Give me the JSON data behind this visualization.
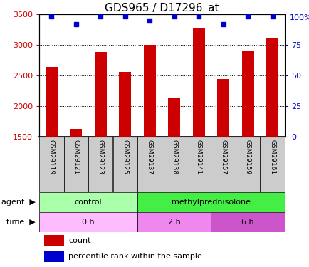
{
  "title": "GDS965 / D17296_at",
  "samples": [
    "GSM29119",
    "GSM29121",
    "GSM29123",
    "GSM29125",
    "GSM29137",
    "GSM29138",
    "GSM29141",
    "GSM29157",
    "GSM29159",
    "GSM29161"
  ],
  "counts": [
    2640,
    1630,
    2880,
    2560,
    3000,
    2140,
    3280,
    2440,
    2900,
    3110
  ],
  "percentile_ranks": [
    98,
    92,
    98,
    98,
    95,
    98,
    98,
    92,
    98,
    98
  ],
  "ylim_left": [
    1500,
    3500
  ],
  "ylim_right": [
    0,
    100
  ],
  "yticks_left": [
    1500,
    2000,
    2500,
    3000,
    3500
  ],
  "yticks_right": [
    0,
    25,
    50,
    75,
    100
  ],
  "bar_color": "#cc0000",
  "dot_color": "#0000cc",
  "sample_box_color": "#cccccc",
  "agent_segments": [
    {
      "label": "control",
      "start": 0,
      "end": 4,
      "color": "#aaffaa"
    },
    {
      "label": "methylprednisolone",
      "start": 4,
      "end": 10,
      "color": "#44ee44"
    }
  ],
  "time_segments": [
    {
      "label": "0 h",
      "start": 0,
      "end": 4,
      "color": "#ffbbff"
    },
    {
      "label": "2 h",
      "start": 4,
      "end": 7,
      "color": "#ee88ee"
    },
    {
      "label": "6 h",
      "start": 7,
      "end": 10,
      "color": "#cc55cc"
    }
  ],
  "legend_count_color": "#cc0000",
  "legend_dot_color": "#0000cc",
  "title_fontsize": 11,
  "axis_color_left": "#cc0000",
  "axis_color_right": "#0000cc",
  "tick_fontsize": 8,
  "label_fontsize": 8,
  "bar_width": 0.5
}
